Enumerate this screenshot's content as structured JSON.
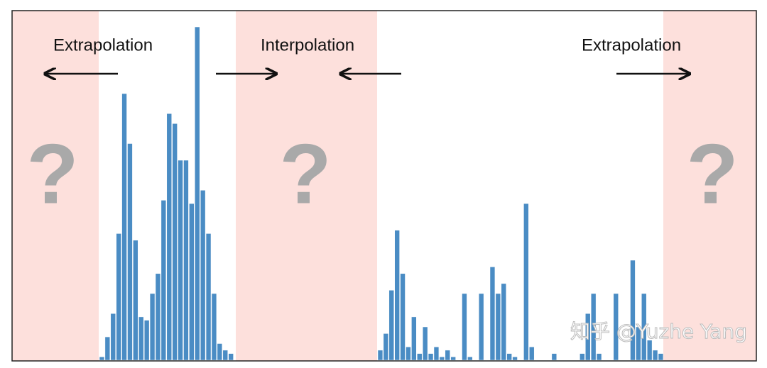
{
  "labels": [
    "Extrapolation",
    "Interpolation",
    "Extrapolation"
  ],
  "histograms": [
    {
      "values": [
        1,
        7,
        14,
        38,
        80,
        65,
        36,
        13,
        12,
        20,
        26,
        48,
        74,
        71,
        60,
        60,
        47,
        100,
        51,
        38,
        20,
        5,
        3,
        2
      ]
    },
    {
      "values": [
        3,
        8,
        21,
        39,
        26,
        4,
        13,
        2,
        10,
        2,
        4,
        1,
        3,
        1,
        0,
        20,
        1,
        0,
        20,
        0,
        28,
        20,
        23,
        2,
        1,
        0,
        47,
        4,
        0,
        0,
        0,
        2,
        0,
        0,
        0,
        0,
        2,
        14,
        20,
        2,
        0,
        0,
        20,
        0,
        0,
        30,
        10,
        20,
        6,
        3,
        2
      ]
    }
  ],
  "ylim": [
    0,
    100
  ],
  "color": "#4a8cc4",
  "watermark": "知乎 @Yuzhe Yang"
}
